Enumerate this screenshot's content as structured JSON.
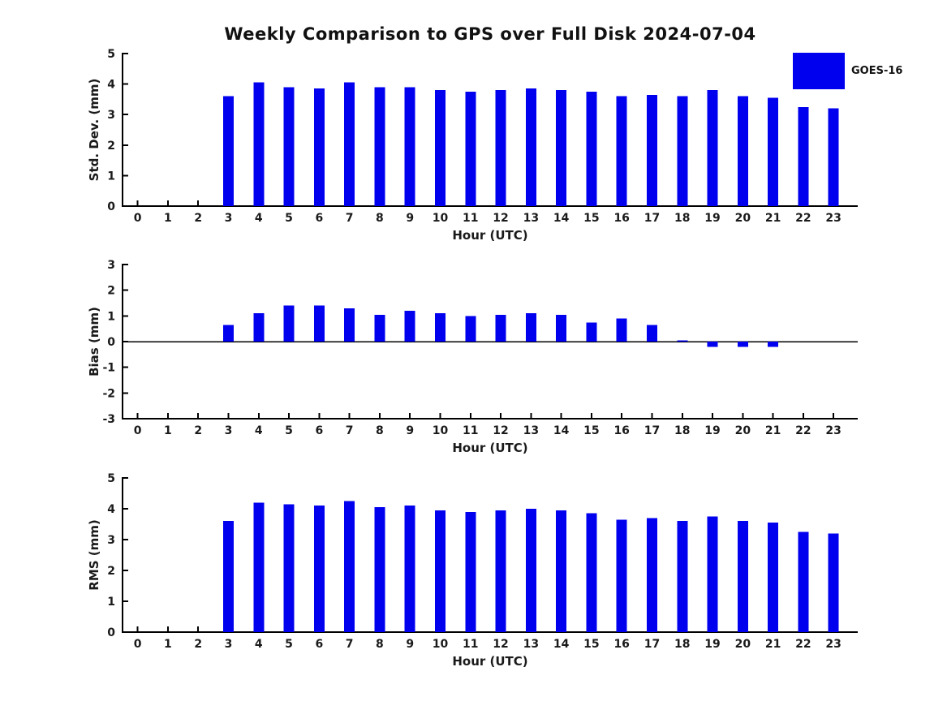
{
  "title": "Weekly Comparison to GPS over Full Disk 2024-07-04",
  "legend": {
    "label": "GOES-16",
    "color": "#0000EE",
    "position": "top-right"
  },
  "colors": {
    "bar": "#0000EE",
    "axis": "#000000",
    "text": "#1a1a1a",
    "background": "#ffffff"
  },
  "chart_data": [
    {
      "type": "bar",
      "name": "std_dev",
      "series_name": "GOES-16",
      "title": "",
      "xlabel": "Hour (UTC)",
      "ylabel": "Std. Dev. (mm)",
      "categories": [
        0,
        1,
        2,
        3,
        4,
        5,
        6,
        7,
        8,
        9,
        10,
        11,
        12,
        13,
        14,
        15,
        16,
        17,
        18,
        19,
        20,
        21,
        22,
        23
      ],
      "values": [
        null,
        null,
        null,
        3.6,
        4.05,
        3.9,
        3.85,
        4.05,
        3.9,
        3.9,
        3.8,
        3.75,
        3.8,
        3.85,
        3.8,
        3.75,
        3.6,
        3.65,
        3.6,
        3.8,
        3.6,
        3.55,
        3.25,
        3.2
      ],
      "ylim": [
        0,
        5
      ],
      "yticks": [
        0,
        1,
        2,
        3,
        4,
        5
      ],
      "zero_line": false,
      "grid": false
    },
    {
      "type": "bar",
      "name": "bias",
      "series_name": "GOES-16",
      "title": "",
      "xlabel": "Hour (UTC)",
      "ylabel": "Bias (mm)",
      "categories": [
        0,
        1,
        2,
        3,
        4,
        5,
        6,
        7,
        8,
        9,
        10,
        11,
        12,
        13,
        14,
        15,
        16,
        17,
        18,
        19,
        20,
        21,
        22,
        23
      ],
      "values": [
        null,
        null,
        null,
        0.65,
        1.1,
        1.4,
        1.4,
        1.3,
        1.05,
        1.2,
        1.1,
        1.0,
        1.05,
        1.1,
        1.05,
        0.75,
        0.9,
        0.65,
        0.05,
        -0.2,
        -0.2,
        -0.2,
        0.0,
        0.0
      ],
      "ylim": [
        -3,
        3
      ],
      "yticks": [
        -3,
        -2,
        -1,
        0,
        1,
        2,
        3
      ],
      "zero_line": true,
      "grid": false
    },
    {
      "type": "bar",
      "name": "rms",
      "series_name": "GOES-16",
      "title": "",
      "xlabel": "Hour (UTC)",
      "ylabel": "RMS (mm)",
      "categories": [
        0,
        1,
        2,
        3,
        4,
        5,
        6,
        7,
        8,
        9,
        10,
        11,
        12,
        13,
        14,
        15,
        16,
        17,
        18,
        19,
        20,
        21,
        22,
        23
      ],
      "values": [
        null,
        null,
        null,
        3.6,
        4.2,
        4.15,
        4.1,
        4.25,
        4.05,
        4.1,
        3.95,
        3.9,
        3.95,
        4.0,
        3.95,
        3.85,
        3.65,
        3.7,
        3.6,
        3.75,
        3.6,
        3.55,
        3.25,
        3.2
      ],
      "ylim": [
        0,
        5
      ],
      "yticks": [
        0,
        1,
        2,
        3,
        4,
        5
      ],
      "zero_line": false,
      "grid": false
    }
  ]
}
